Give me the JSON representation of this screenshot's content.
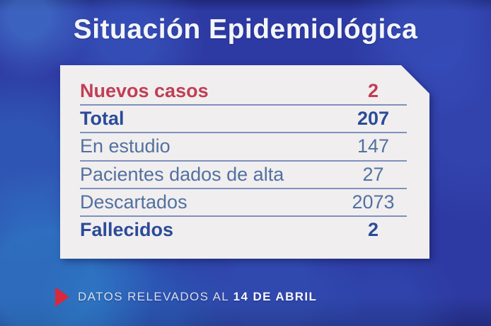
{
  "title": "Situación Epidemiológica",
  "table": {
    "rows": [
      {
        "label": "Nuevos casos",
        "value": "2",
        "emphasis": "red-bold"
      },
      {
        "label": "Total",
        "value": "207",
        "emphasis": "navy-bold"
      },
      {
        "label": "En estudio",
        "value": "147",
        "emphasis": "regular"
      },
      {
        "label": "Pacientes dados de alta",
        "value": "27",
        "emphasis": "regular"
      },
      {
        "label": "Descartados",
        "value": "2073",
        "emphasis": "regular"
      },
      {
        "label": "Fallecidos",
        "value": "2",
        "emphasis": "navy-bold"
      }
    ]
  },
  "footer": {
    "prefix": "DATOS RELEVADOS AL ",
    "date": "14 DE ABRIL",
    "marker_icon": "triangle-right-icon"
  },
  "colors": {
    "background_blue": "#2e3aa3",
    "card_background": "#f0eeef",
    "highlight_red": "#c13e55",
    "navy_bold": "#2b4b98",
    "slate_regular": "#53719f",
    "divider": "#8090bd",
    "triangle_red": "#d62a3c",
    "title_text": "#f3f5fa"
  }
}
